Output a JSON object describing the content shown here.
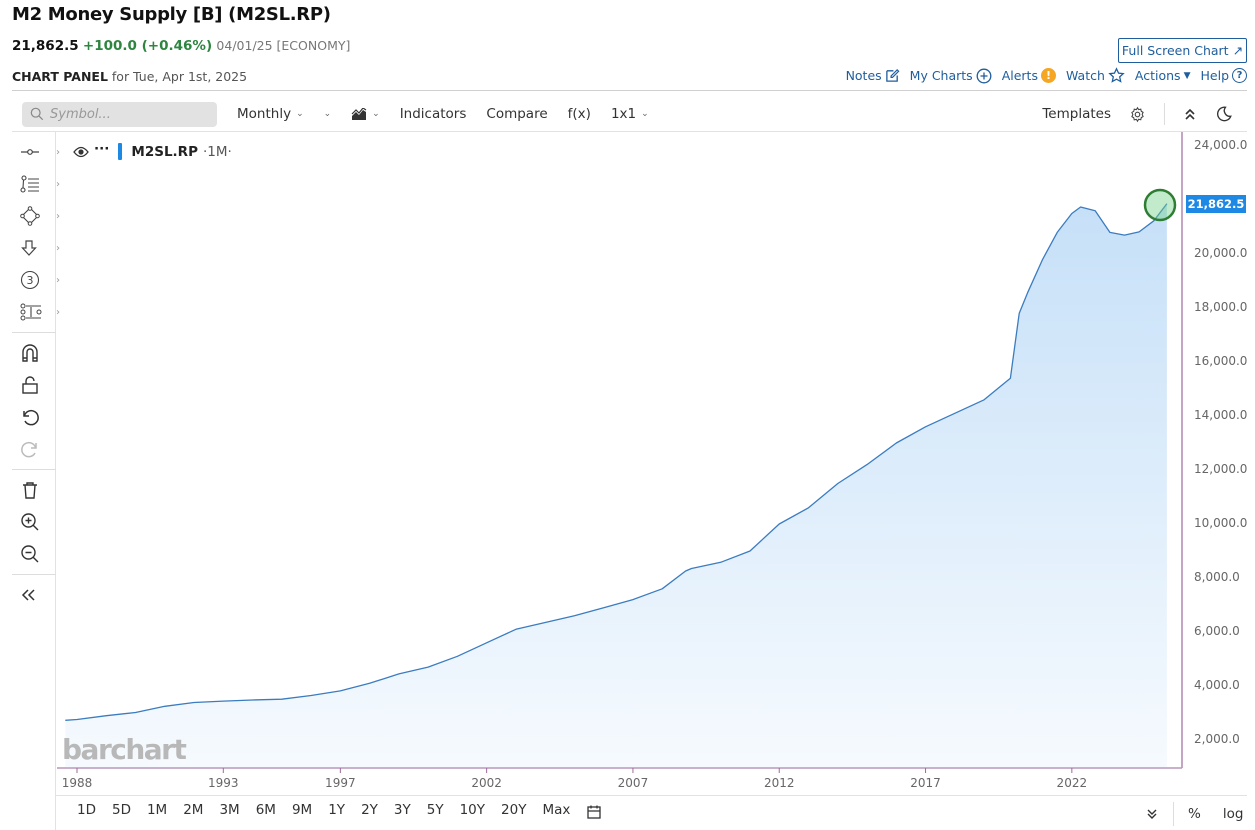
{
  "header": {
    "title": "M2 Money Supply [B] (M2SL.RP)",
    "last": "21,862.5",
    "change": "+100.0 (+0.46%)",
    "meta": "04/01/25 [ECONOMY]",
    "panel_label": "CHART PANEL",
    "panel_date": "for Tue, Apr 1st, 2025",
    "full_screen": "Full Screen Chart",
    "links": {
      "notes": "Notes",
      "my_charts": "My Charts",
      "alerts": "Alerts",
      "watch": "Watch",
      "actions": "Actions",
      "help": "Help"
    }
  },
  "toolbar": {
    "search_placeholder": "Symbol...",
    "period": "Monthly",
    "indicators": "Indicators",
    "compare": "Compare",
    "fx": "f(x)",
    "layout": "1x1",
    "templates": "Templates"
  },
  "legend": {
    "symbol": "M2SL.RP",
    "interval": "·1M·"
  },
  "price_tag": "21,862.5",
  "logo": "barchart",
  "ranges": [
    "1D",
    "5D",
    "1M",
    "2M",
    "3M",
    "6M",
    "9M",
    "1Y",
    "2Y",
    "3Y",
    "5Y",
    "10Y",
    "20Y",
    "Max"
  ],
  "scale": {
    "percent": "%",
    "log": "log"
  },
  "colors": {
    "line": "#3b7cc0",
    "fill_top": "#c6e0f8",
    "fill_bottom": "#f4f9fe",
    "accent": "#1e88e5",
    "positive": "#2e8540",
    "axis": "#9c6b9c",
    "highlight": "#2e8b3c"
  },
  "chart_data": {
    "type": "area",
    "title": "M2 Money Supply [B] (M2SL.RP)",
    "xlabel": "",
    "ylabel": "",
    "ylim": [
      1500,
      24300
    ],
    "yticks": [
      "24,000.0",
      "20,000.0",
      "18,000.0",
      "16,000.0",
      "14,000.0",
      "12,000.0",
      "10,000.0",
      "8,000.0",
      "6,000.0",
      "4,000.0",
      "2,000.0"
    ],
    "xticks": [
      "1988",
      "1993",
      "1997",
      "2002",
      "2007",
      "2012",
      "2017",
      "2022"
    ],
    "last_value": 21862.5,
    "x": [
      1987.6,
      1988,
      1989,
      1990,
      1991,
      1992,
      1993,
      1994,
      1995,
      1996,
      1997,
      1998,
      1999,
      2000,
      2001,
      2002,
      2003,
      2004,
      2005,
      2006,
      2007,
      2008,
      2008.8,
      2009,
      2010,
      2011,
      2012,
      2013,
      2014,
      2015,
      2016,
      2017,
      2018,
      2019,
      2019.9,
      2020.2,
      2020.5,
      2021,
      2021.5,
      2022,
      2022.3,
      2022.8,
      2023.3,
      2023.8,
      2024.3,
      2024.8,
      2025.25
    ],
    "values": [
      2730,
      2760,
      2900,
      3020,
      3250,
      3390,
      3440,
      3480,
      3510,
      3650,
      3820,
      4100,
      4450,
      4700,
      5100,
      5600,
      6100,
      6350,
      6600,
      6900,
      7200,
      7600,
      8260,
      8350,
      8580,
      9000,
      10000,
      10600,
      11500,
      12200,
      13000,
      13600,
      14100,
      14600,
      15400,
      17800,
      18600,
      19800,
      20800,
      21500,
      21740,
      21600,
      20800,
      20700,
      20820,
      21230,
      21862.5
    ],
    "series": [
      {
        "name": "M2SL.RP"
      }
    ]
  }
}
